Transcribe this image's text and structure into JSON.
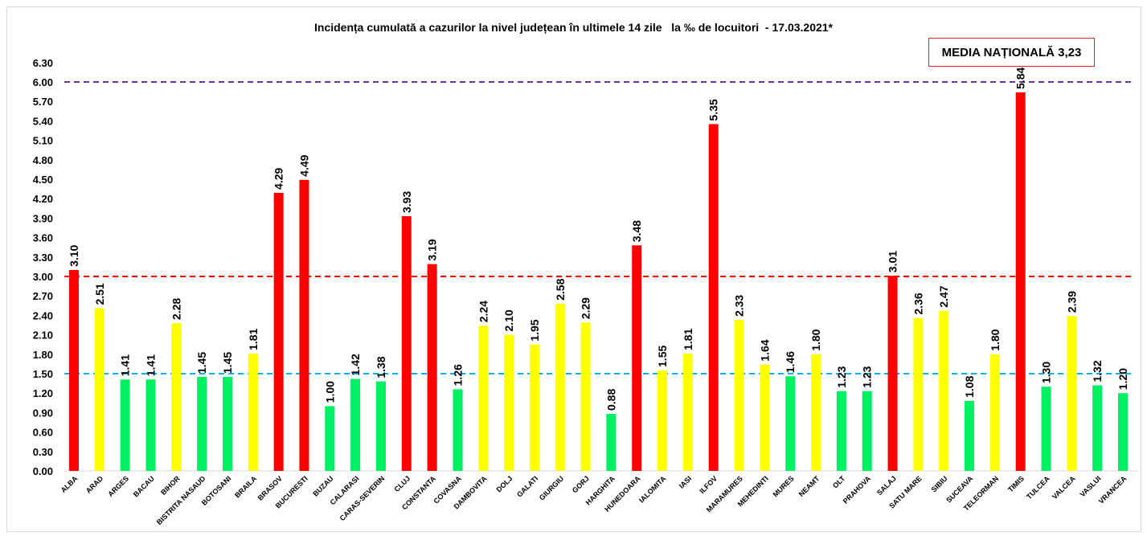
{
  "chart_data": {
    "type": "bar",
    "title": "Incidența cumulată a cazurilor la nivel județean în ultimele 14 zile   la ‰ de locuitori  - 17.03.2021*",
    "annotation": "MEDIA NAȚIONALĂ 3,23",
    "xlabel": "",
    "ylabel": "",
    "ylim": [
      0,
      6.3
    ],
    "yticks": [
      "0.00",
      "0.30",
      "0.60",
      "0.90",
      "1.20",
      "1.50",
      "1.80",
      "2.10",
      "2.40",
      "2.70",
      "3.00",
      "3.30",
      "3.60",
      "3.90",
      "4.20",
      "4.50",
      "4.80",
      "5.10",
      "5.40",
      "5.70",
      "6.00",
      "6.30"
    ],
    "grid": false,
    "categories": [
      "ALBA",
      "ARAD",
      "ARGES",
      "BACAU",
      "BIHOR",
      "BISTRITA NASAUD",
      "BOTOSANI",
      "BRAILA",
      "BRASOV",
      "BUCURESTI",
      "BUZAU",
      "CALARASI",
      "CARAS-SEVERIN",
      "CLUJ",
      "CONSTANTA",
      "COVASNA",
      "DAMBOVITA",
      "DOLJ",
      "GALATI",
      "GIURGIU",
      "GORJ",
      "HARGHITA",
      "HUNEDOARA",
      "IALOMITA",
      "IASI",
      "ILFOV",
      "MARAMURES",
      "MEHEDINTI",
      "MURES",
      "NEAMT",
      "OLT",
      "PRAHOVA",
      "SALAJ",
      "SATU MARE",
      "SIBIU",
      "SUCEAVA",
      "TELEORMAN",
      "TIMIS",
      "TULCEA",
      "VALCEA",
      "VASLUI",
      "VRANCEA"
    ],
    "values": [
      3.1,
      2.51,
      1.41,
      1.41,
      2.28,
      1.45,
      1.45,
      1.81,
      4.29,
      4.49,
      1.0,
      1.42,
      1.38,
      3.93,
      3.19,
      1.26,
      2.24,
      2.1,
      1.95,
      2.58,
      2.29,
      0.88,
      3.48,
      1.55,
      1.81,
      5.35,
      2.33,
      1.64,
      1.46,
      1.8,
      1.23,
      1.23,
      3.01,
      2.36,
      2.47,
      1.08,
      1.8,
      5.84,
      1.3,
      2.39,
      1.32,
      1.2
    ],
    "value_labels": [
      "3.10",
      "2.51",
      "1.41",
      "1.41",
      "2.28",
      "1.45",
      "1.45",
      "1.81",
      "4.29",
      "4.49",
      "1.00",
      "1.42",
      "1.38",
      "3.93",
      "3.19",
      "1.26",
      "2.24",
      "2.10",
      "1.95",
      "2.58",
      "2.29",
      "0.88",
      "3.48",
      "1.55",
      "1.81",
      "5.35",
      "2.33",
      "1.64",
      "1.46",
      "1.80",
      "1.23",
      "1.23",
      "3.01",
      "2.36",
      "2.47",
      "1.08",
      "1.80",
      "5.84",
      "1.30",
      "2.39",
      "1.32",
      "1.20"
    ],
    "reference_lines": [
      {
        "value": 6.0,
        "color": "#7030a0",
        "style": "dashed"
      },
      {
        "value": 3.0,
        "color": "#ff0000",
        "style": "dashed"
      },
      {
        "value": 1.5,
        "color": "#00b0f0",
        "style": "dashed"
      }
    ],
    "color_rules": [
      {
        "above": 3.0,
        "color": "#ff0000"
      },
      {
        "above": 1.5,
        "color": "#ffff00"
      },
      {
        "above": 0,
        "color": "#00f064"
      }
    ]
  }
}
